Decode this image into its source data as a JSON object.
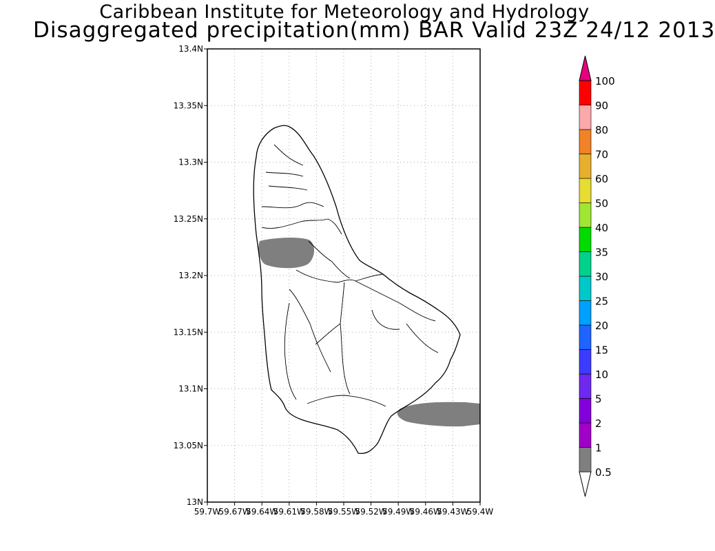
{
  "title_line1": "Caribbean Institute for Meteorology and Hydrology",
  "title_line2": "Disaggregated precipitation(mm) BAR Valid 23Z 24/12 2013",
  "lat_labels": [
    "13N",
    "13.05N",
    "13.1N",
    "13.15N",
    "13.2N",
    "13.25N",
    "13.3N",
    "13.35N",
    "13.4N"
  ],
  "lon_labels": [
    "59.7W",
    "59.67W",
    "59.64W",
    "59.61W",
    "59.58W",
    "59.55W",
    "59.52W",
    "59.49W",
    "59.46W",
    "59.43W",
    "59.4W"
  ],
  "colorbar": {
    "levels": [
      "0.5",
      "1",
      "2",
      "5",
      "10",
      "15",
      "20",
      "25",
      "30",
      "35",
      "40",
      "50",
      "60",
      "70",
      "80",
      "90",
      "100"
    ],
    "colors": [
      "#7f7f7f",
      "#a000c8",
      "#8200dc",
      "#6e28f0",
      "#3c3cff",
      "#1e64ff",
      "#00a0ff",
      "#00c8c8",
      "#00d28c",
      "#00dc00",
      "#a0e632",
      "#e6dc32",
      "#e6af2d",
      "#f08228",
      "#faaaaa",
      "#ff0000",
      "#ff3c3c",
      "#e6007e"
    ]
  },
  "chart_data": {
    "type": "map",
    "region": "Barbados",
    "extent": {
      "lon_min": -59.7,
      "lon_max": -59.4,
      "lat_min": 13.0,
      "lat_max": 13.4
    },
    "grid": true,
    "precip_areas": [
      {
        "center_lon": -59.605,
        "center_lat": 13.218,
        "category": "0.5-1 mm"
      },
      {
        "center_lon": -59.43,
        "center_lat": 13.079,
        "category": "0.5-1 mm"
      }
    ]
  }
}
